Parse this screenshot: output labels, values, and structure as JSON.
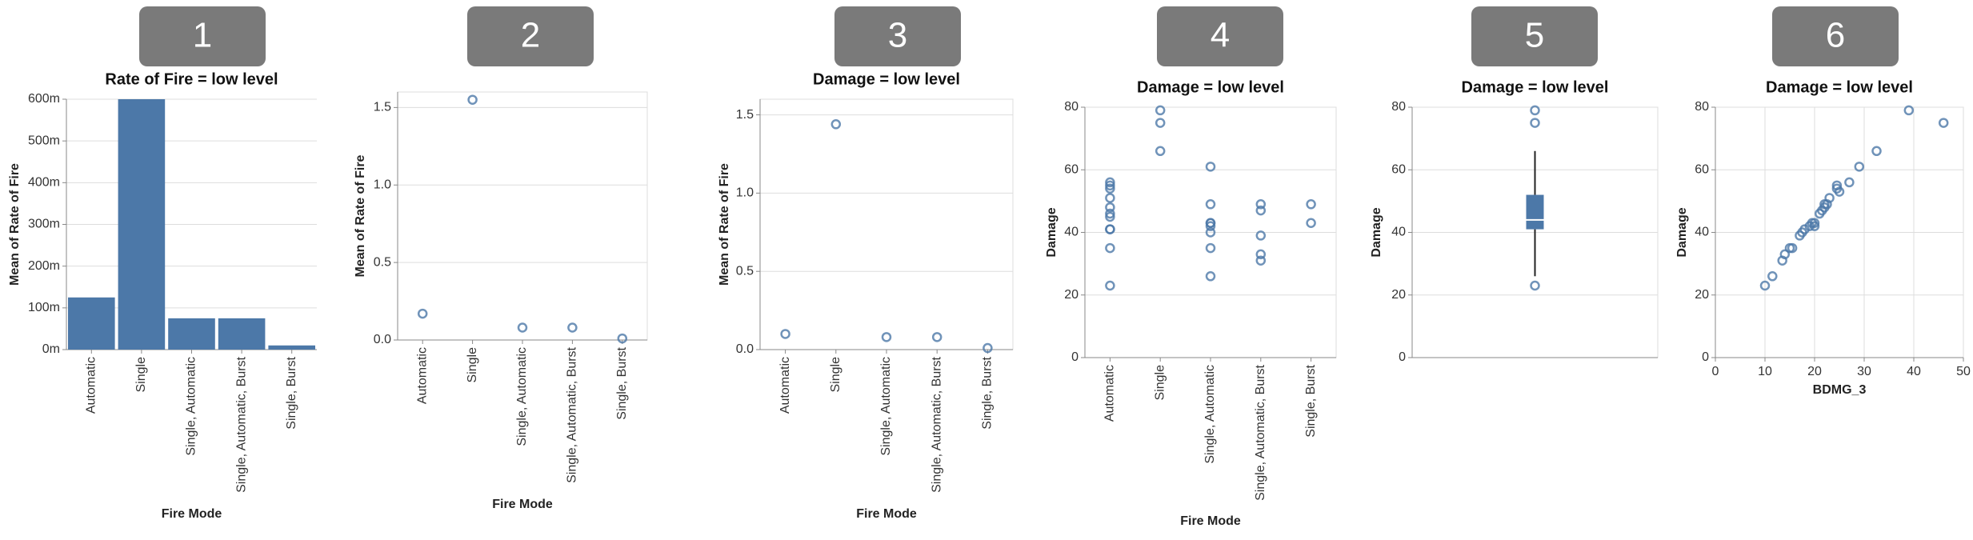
{
  "chart_data": [
    {
      "type": "bar",
      "badge": "1",
      "title": "Rate of Fire = low level",
      "x_label": "Fire Mode",
      "y_label": "Mean of Rate of Fire",
      "color": "#4c78a8",
      "categories": [
        "Automatic",
        "Single",
        "Single, Automatic",
        "Single, Automatic, Burst",
        "Single, Burst"
      ],
      "values": [
        0.125,
        0.6,
        0.075,
        0.075,
        0.01
      ],
      "ylim": [
        0,
        0.6
      ],
      "yticks": [
        {
          "value": 0,
          "label": "0m"
        },
        {
          "value": 0.1,
          "label": "100m"
        },
        {
          "value": 0.2,
          "label": "200m"
        },
        {
          "value": 0.3,
          "label": "300m"
        },
        {
          "value": 0.4,
          "label": "400m"
        },
        {
          "value": 0.5,
          "label": "500m"
        },
        {
          "value": 0.6,
          "label": "600m"
        }
      ],
      "grid": true
    },
    {
      "type": "point",
      "badge": "2",
      "x_label": "Fire Mode",
      "y_label": "Mean of Rate of Fire",
      "color": "#4c78a8",
      "categories": [
        "Automatic",
        "Single",
        "Single, Automatic",
        "Single, Automatic, Burst",
        "Single, Burst"
      ],
      "values": [
        0.17,
        1.55,
        0.08,
        0.08,
        0.01
      ],
      "ylim": [
        0,
        1.6
      ],
      "yticks": [
        {
          "value": 0,
          "label": "0.0"
        },
        0.5,
        {
          "value": 1,
          "label": "1.0"
        },
        1.5
      ],
      "grid": true
    },
    {
      "type": "point",
      "badge": "3",
      "title": "Damage = low level",
      "x_label": "Fire Mode",
      "y_label": "Mean of Rate of Fire",
      "color": "#4c78a8",
      "categories": [
        "Automatic",
        "Single",
        "Single, Automatic",
        "Single, Automatic, Burst",
        "Single, Burst"
      ],
      "values": [
        0.1,
        1.44,
        0.08,
        0.08,
        0.01
      ],
      "ylim": [
        0,
        1.6
      ],
      "yticks": [
        {
          "value": 0,
          "label": "0.0"
        },
        0.5,
        {
          "value": 1,
          "label": "1.0"
        },
        1.5
      ],
      "grid": true
    },
    {
      "type": "strip",
      "badge": "4",
      "title": "Damage = low level",
      "x_label": "Fire Mode",
      "y_label": "Damage",
      "color": "#4c78a8",
      "categories": [
        "Automatic",
        "Single",
        "Single, Automatic",
        "Single, Automatic, Burst",
        "Single, Burst"
      ],
      "values": [
        [
          56,
          55,
          54,
          51,
          48,
          46,
          45,
          41,
          41,
          35,
          23
        ],
        [
          79,
          75,
          66
        ],
        [
          61,
          49,
          43,
          43,
          42,
          40,
          35,
          26
        ],
        [
          49,
          47,
          39,
          33,
          31
        ],
        [
          49,
          43
        ]
      ],
      "ylim": [
        0,
        80
      ],
      "yticks": [
        0,
        20,
        40,
        60,
        80
      ],
      "grid": true
    },
    {
      "type": "boxplot",
      "badge": "5",
      "title": "Damage = low level",
      "y_label": "Damage",
      "color": "#4c78a8",
      "box": {
        "min": 26,
        "q1": 41,
        "median": 44,
        "q3": 52,
        "max": 66
      },
      "outliers": [
        79,
        75,
        23
      ],
      "ylim": [
        0,
        80
      ],
      "yticks": [
        0,
        20,
        40,
        60,
        80
      ],
      "grid": true
    },
    {
      "type": "scatter",
      "badge": "6",
      "title": "Damage = low level",
      "x_label": "BDMG_3",
      "y_label": "Damage",
      "color": "#4c78a8",
      "x": [
        10,
        11.5,
        13.5,
        14,
        15,
        15.5,
        17,
        17.5,
        18,
        19,
        19.5,
        20,
        20,
        21,
        21.5,
        22,
        22,
        22.5,
        23,
        24.5,
        24.5,
        25,
        27,
        29,
        32.5,
        39,
        46
      ],
      "values": [
        23,
        26,
        31,
        33,
        35,
        35,
        39,
        40,
        41,
        42,
        43,
        43,
        42,
        46,
        47,
        48,
        49,
        49,
        51,
        54,
        55,
        53,
        56,
        61,
        66,
        79,
        75
      ],
      "xlim": [
        0,
        50
      ],
      "xticks": [
        0,
        10,
        20,
        30,
        40,
        50
      ],
      "ylim": [
        0,
        80
      ],
      "yticks": [
        0,
        20,
        40,
        60,
        80
      ],
      "grid": true
    }
  ]
}
